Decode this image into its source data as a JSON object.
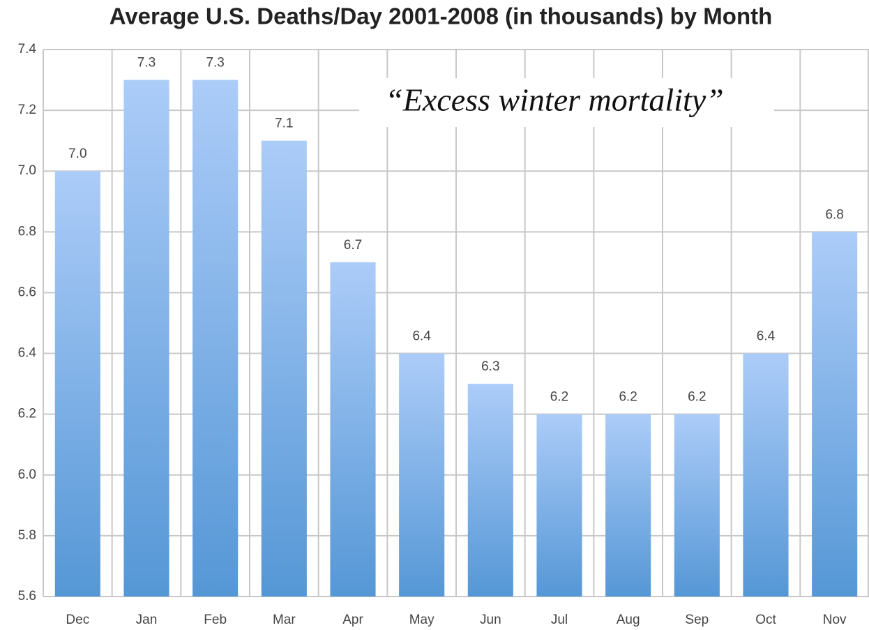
{
  "chart_data": {
    "type": "bar",
    "title": "Average U.S. Deaths/Day 2001-2008 (in thousands) by Month",
    "annotation": "“Excess winter mortality”",
    "categories": [
      "Dec",
      "Jan",
      "Feb",
      "Mar",
      "Apr",
      "May",
      "Jun",
      "Jul",
      "Aug",
      "Sep",
      "Oct",
      "Nov"
    ],
    "values": [
      7.0,
      7.3,
      7.3,
      7.1,
      6.7,
      6.4,
      6.3,
      6.2,
      6.2,
      6.2,
      6.4,
      6.8
    ],
    "value_labels": [
      "7.0",
      "7.3",
      "7.3",
      "7.1",
      "6.7",
      "6.4",
      "6.3",
      "6.2",
      "6.2",
      "6.2",
      "6.4",
      "6.8"
    ],
    "color": "#5597d6",
    "ylim": [
      5.6,
      7.4
    ],
    "yticks": [
      5.6,
      5.8,
      {
        "value": 6.0,
        "label": "6.0"
      },
      6.2,
      6.4,
      6.6,
      6.8,
      {
        "value": 7.0,
        "label": "7.0"
      },
      7.2,
      7.4
    ],
    "grid": true
  }
}
